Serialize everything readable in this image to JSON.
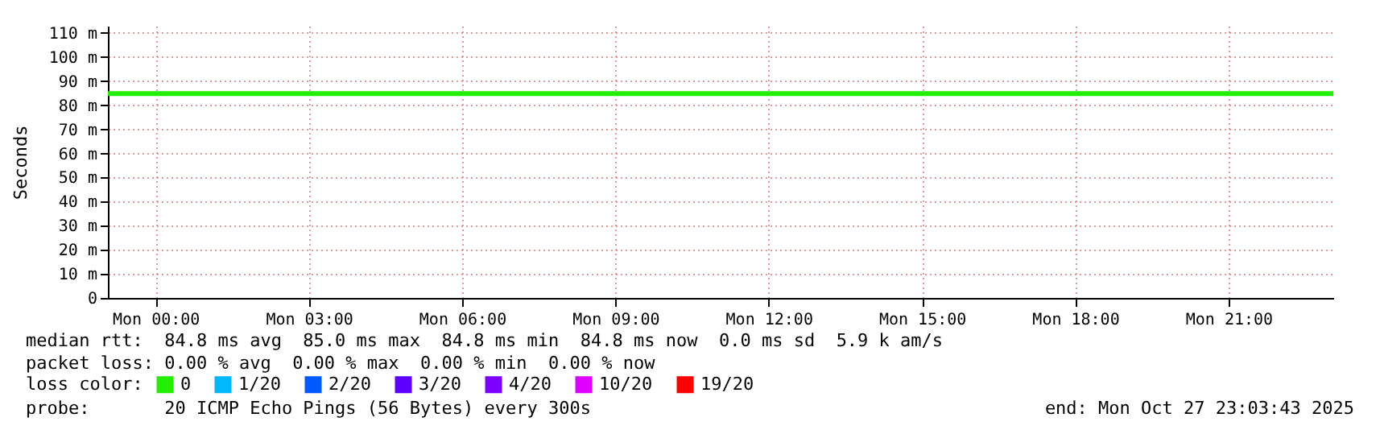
{
  "chart_data": {
    "type": "line",
    "ylabel": "Seconds",
    "legend_title": "loss color:",
    "legend": "bottom",
    "x": [
      "2025-10-26T23:04",
      "2025-10-27T23:03"
    ],
    "series": [
      {
        "name": "0",
        "color": "#22ee00",
        "values": [
          84.8,
          84.8
        ]
      },
      {
        "name": "1/20",
        "color": "#00b8ff",
        "values": [
          null,
          null
        ]
      },
      {
        "name": "2/20",
        "color": "#0059ff",
        "values": [
          null,
          null
        ]
      },
      {
        "name": "3/20",
        "color": "#5e00ff",
        "values": [
          null,
          null
        ]
      },
      {
        "name": "4/20",
        "color": "#7e00ff",
        "values": [
          null,
          null
        ]
      },
      {
        "name": "10/20",
        "color": "#dd00ff",
        "values": [
          null,
          null
        ]
      },
      {
        "name": "19/20",
        "color": "#ff0000",
        "values": [
          null,
          null
        ]
      }
    ],
    "xlim": [
      "2025-10-26T23:04",
      "2025-10-27T23:03"
    ],
    "xticks": [
      {
        "value": "2025-10-27T00:00",
        "label": "Mon 00:00"
      },
      {
        "value": "2025-10-27T03:00",
        "label": "Mon 03:00"
      },
      {
        "value": "2025-10-27T06:00",
        "label": "Mon 06:00"
      },
      {
        "value": "2025-10-27T09:00",
        "label": "Mon 09:00"
      },
      {
        "value": "2025-10-27T12:00",
        "label": "Mon 12:00"
      },
      {
        "value": "2025-10-27T15:00",
        "label": "Mon 15:00"
      },
      {
        "value": "2025-10-27T18:00",
        "label": "Mon 18:00"
      },
      {
        "value": "2025-10-27T21:00",
        "label": "Mon 21:00"
      }
    ],
    "ylim": [
      0,
      113
    ],
    "yticks": [
      0,
      {
        "value": 10,
        "label": "10 m"
      },
      {
        "value": 20,
        "label": "20 m"
      },
      {
        "value": 30,
        "label": "30 m"
      },
      {
        "value": 40,
        "label": "40 m"
      },
      {
        "value": 50,
        "label": "50 m"
      },
      {
        "value": 60,
        "label": "60 m"
      },
      {
        "value": 70,
        "label": "70 m"
      },
      {
        "value": 80,
        "label": "80 m"
      },
      {
        "value": 90,
        "label": "90 m"
      },
      {
        "value": 100,
        "label": "100 m"
      },
      {
        "value": 110,
        "label": "110 m"
      }
    ],
    "grid": true,
    "line_style": "solid",
    "annotations": [
      "median rtt:  84.8 ms avg  85.0 ms max  84.8 ms min  84.8 ms now  0.0 ms sd  5.9 k am/s",
      "packet loss: 0.00 % avg  0.00 % max  0.00 % min  0.00 % now",
      "probe:       20 ICMP Echo Pings (56 Bytes) every 300s",
      "end: Mon Oct 27 23:03:43 2025"
    ]
  }
}
